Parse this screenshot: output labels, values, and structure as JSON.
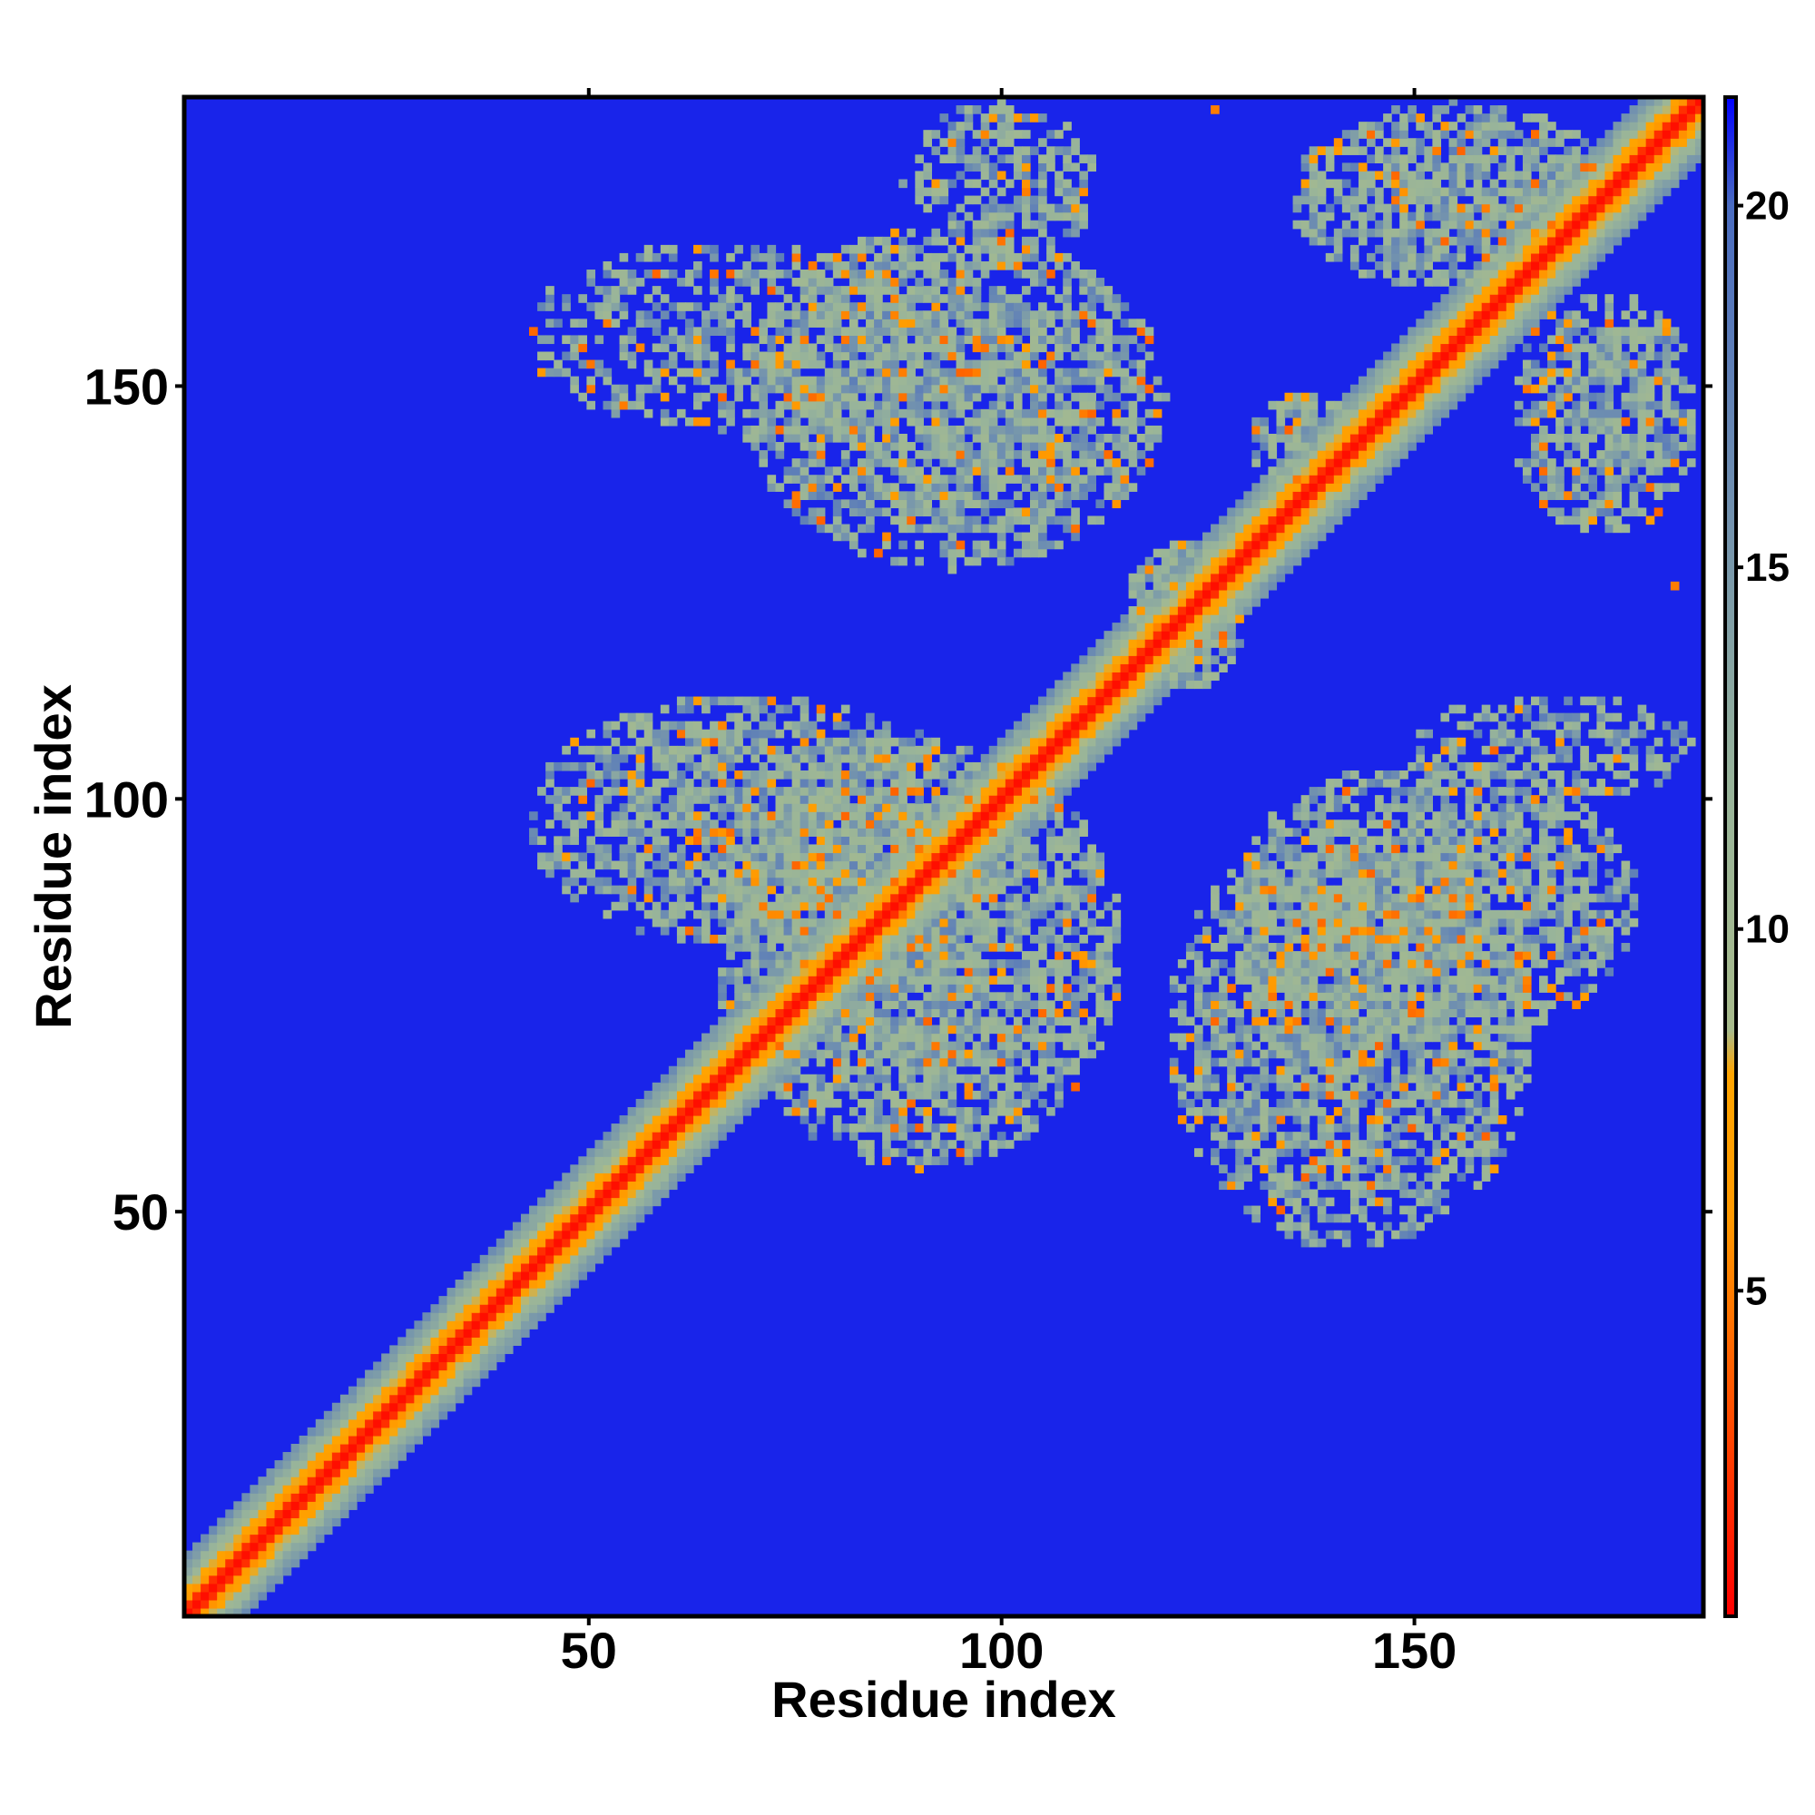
{
  "chart_data": {
    "type": "heatmap",
    "title": "",
    "xlabel": "Residue index",
    "ylabel": "Residue index",
    "xlim": [
      1,
      185
    ],
    "ylim": [
      1,
      185
    ],
    "n_residues": 185,
    "x_ticks": [
      50,
      100,
      150
    ],
    "y_ticks": [
      50,
      100,
      150
    ],
    "colorbar": {
      "range": [
        0.5,
        21.5
      ],
      "ticks": [
        5,
        10,
        15,
        20
      ],
      "position": "right",
      "stops": [
        {
          "value": 0.5,
          "color": "#ff0000"
        },
        {
          "value": 6,
          "color": "#ff9900"
        },
        {
          "value": 8,
          "color": "#ffa500"
        },
        {
          "value": 8.6,
          "color": "#a8bb8c"
        },
        {
          "value": 12,
          "color": "#98b49a"
        },
        {
          "value": 16,
          "color": "#6f8fb0"
        },
        {
          "value": 20,
          "color": "#4a6cc0"
        },
        {
          "value": 21.5,
          "color": "#0000ff"
        }
      ]
    },
    "background_value": 21,
    "diagonal_band": {
      "core_halfwidth": 1.5,
      "mid_halfwidth": 3.5,
      "outer_halfwidth": 7
    },
    "contact_regions": [
      {
        "x": [
          65,
          115
        ],
        "y": [
          55,
          108
        ],
        "density": 0.85
      },
      {
        "x": [
          42,
          95
        ],
        "y": [
          82,
          113
        ],
        "density": 0.8
      },
      {
        "x": [
          120,
          165
        ],
        "y": [
          45,
          98
        ],
        "density": 0.75
      },
      {
        "x": [
          128,
          178
        ],
        "y": [
          70,
          105
        ],
        "density": 0.75
      },
      {
        "x": [
          150,
          185
        ],
        "y": [
          100,
          113
        ],
        "density": 0.6
      },
      {
        "x": [
          68,
          120
        ],
        "y": [
          128,
          170
        ],
        "density": 0.8
      },
      {
        "x": [
          42,
          90
        ],
        "y": [
          145,
          168
        ],
        "density": 0.55
      },
      {
        "x": [
          88,
          112
        ],
        "y": [
          165,
          185
        ],
        "density": 0.6
      },
      {
        "x": [
          135,
          175
        ],
        "y": [
          162,
          185
        ],
        "density": 0.75
      },
      {
        "x": [
          162,
          185
        ],
        "y": [
          132,
          162
        ],
        "density": 0.75
      },
      {
        "x": [
          115,
          130
        ],
        "y": [
          113,
          132
        ],
        "density": 1.0
      },
      {
        "x": [
          130,
          145
        ],
        "y": [
          136,
          150
        ],
        "density": 0.85
      }
    ],
    "isolated_points": [
      {
        "x": 126,
        "y": 184,
        "value": 5
      },
      {
        "x": 182,
        "y": 126,
        "value": 5
      }
    ]
  }
}
